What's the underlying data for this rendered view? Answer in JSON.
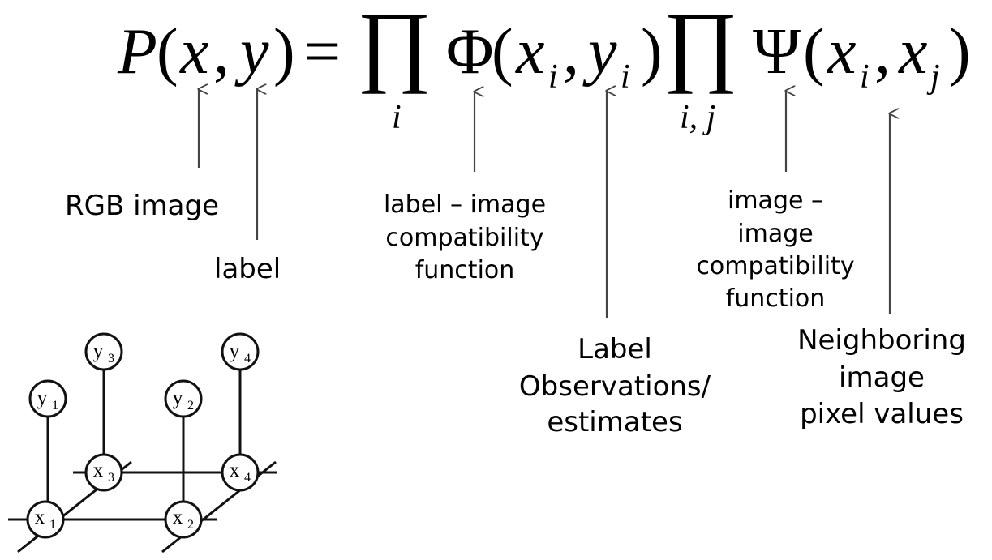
{
  "equation": {
    "lhs_func": "P",
    "lhs_args": [
      "x",
      "y"
    ],
    "equals": "=",
    "product_symbol": "∏",
    "product1_index": "i",
    "potential1": {
      "symbol": "Φ",
      "arg1": "x",
      "arg1_sub": "i",
      "arg2": "y",
      "arg2_sub": "i"
    },
    "product2_index": "i, j",
    "potential2": {
      "symbol": "Ψ",
      "arg1": "x",
      "arg1_sub": "i",
      "arg2": "x",
      "arg2_sub": "j"
    }
  },
  "annotations": [
    {
      "id": "rgb-image",
      "lines": [
        "RGB image"
      ]
    },
    {
      "id": "label",
      "lines": [
        "label"
      ]
    },
    {
      "id": "label-image-compat",
      "lines": [
        "label – image",
        "compatibility",
        "function"
      ]
    },
    {
      "id": "label-observations",
      "lines": [
        "Label",
        "Observations/",
        "estimates"
      ]
    },
    {
      "id": "image-image-compat",
      "lines": [
        "image –",
        "image",
        "compatibility",
        "function"
      ]
    },
    {
      "id": "neighboring-pixels",
      "lines": [
        "Neighboring",
        "image",
        "pixel values"
      ]
    }
  ],
  "graph": {
    "nodes": [
      {
        "id": "y1",
        "var": "y",
        "sub": "1"
      },
      {
        "id": "y2",
        "var": "y",
        "sub": "2"
      },
      {
        "id": "y3",
        "var": "y",
        "sub": "3"
      },
      {
        "id": "y4",
        "var": "y",
        "sub": "4"
      },
      {
        "id": "x1",
        "var": "x",
        "sub": "1"
      },
      {
        "id": "x2",
        "var": "x",
        "sub": "2"
      },
      {
        "id": "x3",
        "var": "x",
        "sub": "3"
      },
      {
        "id": "x4",
        "var": "x",
        "sub": "4"
      }
    ],
    "edges": [
      [
        "y1",
        "x1"
      ],
      [
        "y2",
        "x2"
      ],
      [
        "y3",
        "x3"
      ],
      [
        "y4",
        "x4"
      ],
      [
        "x1",
        "x2"
      ],
      [
        "x3",
        "x4"
      ],
      [
        "x1",
        "x3"
      ],
      [
        "x2",
        "x4"
      ]
    ]
  }
}
